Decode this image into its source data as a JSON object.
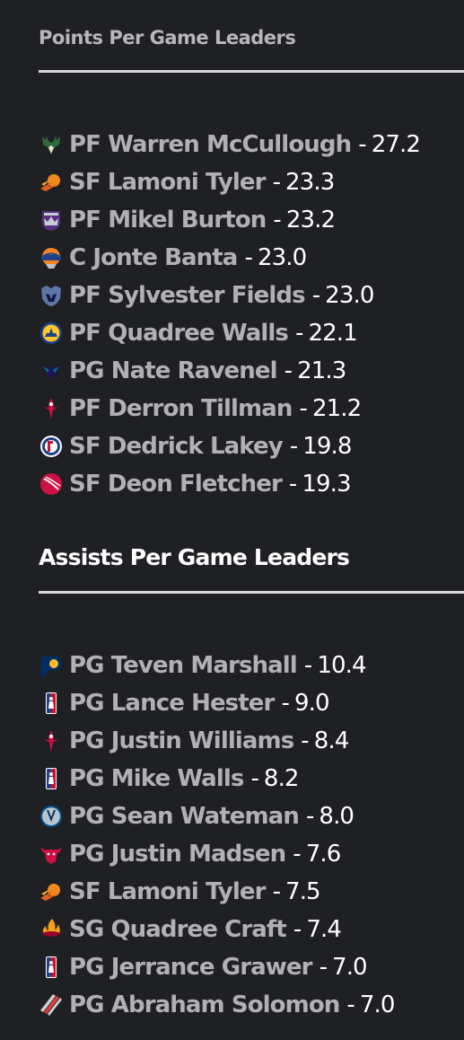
{
  "points": {
    "title": "Points Per Game Leaders",
    "leaders": [
      {
        "team_icon": "bucks-logo-icon",
        "position": "PF",
        "name": "Warren McCullough",
        "value": "27.2"
      },
      {
        "team_icon": "suns-logo-icon",
        "position": "SF",
        "name": "Lamoni Tyler",
        "value": "23.3"
      },
      {
        "team_icon": "kings-logo-icon",
        "position": "PF",
        "name": "Mikel Burton",
        "value": "23.2"
      },
      {
        "team_icon": "knicks-logo-icon",
        "position": "C",
        "name": "Jonte Banta",
        "value": "23.0"
      },
      {
        "team_icon": "grizzlies-logo-icon",
        "position": "PF",
        "name": "Sylvester Fields",
        "value": "23.0"
      },
      {
        "team_icon": "warriors-logo-icon",
        "position": "PF",
        "name": "Quadree Walls",
        "value": "22.1"
      },
      {
        "team_icon": "hornets-logo-icon",
        "position": "PG",
        "name": "Nate Ravenel",
        "value": "21.3"
      },
      {
        "team_icon": "rockets-logo-icon",
        "position": "PF",
        "name": "Derron Tillman",
        "value": "21.2"
      },
      {
        "team_icon": "clippers-logo-icon",
        "position": "SF",
        "name": "Dedrick Lakey",
        "value": "19.8"
      },
      {
        "team_icon": "raptors-logo-icon",
        "position": "SF",
        "name": "Deon Fletcher",
        "value": "19.3"
      }
    ]
  },
  "assists": {
    "title": "Assists Per Game Leaders",
    "leaders": [
      {
        "team_icon": "pacers-logo-icon",
        "position": "PG",
        "name": "Teven Marshall",
        "value": "10.4"
      },
      {
        "team_icon": "nba-logo-icon",
        "position": "PG",
        "name": "Lance Hester",
        "value": "9.0"
      },
      {
        "team_icon": "rockets-logo-icon",
        "position": "PG",
        "name": "Justin Williams",
        "value": "8.4"
      },
      {
        "team_icon": "nba-logo-icon",
        "position": "PG",
        "name": "Mike Walls",
        "value": "8.2"
      },
      {
        "team_icon": "mavericks-logo-icon",
        "position": "PG",
        "name": "Sean Wateman",
        "value": "8.0"
      },
      {
        "team_icon": "bulls-logo-icon",
        "position": "PG",
        "name": "Justin Madsen",
        "value": "7.6"
      },
      {
        "team_icon": "suns-logo-icon",
        "position": "SF",
        "name": "Lamoni Tyler",
        "value": "7.5"
      },
      {
        "team_icon": "heat-logo-icon",
        "position": "SG",
        "name": "Quadree Craft",
        "value": "7.4"
      },
      {
        "team_icon": "nba-logo-icon",
        "position": "PG",
        "name": "Jerrance Grawer",
        "value": "7.0"
      },
      {
        "team_icon": "blazers-logo-icon",
        "position": "PG",
        "name": "Abraham Solomon",
        "value": "7.0"
      }
    ]
  },
  "separator": "-"
}
